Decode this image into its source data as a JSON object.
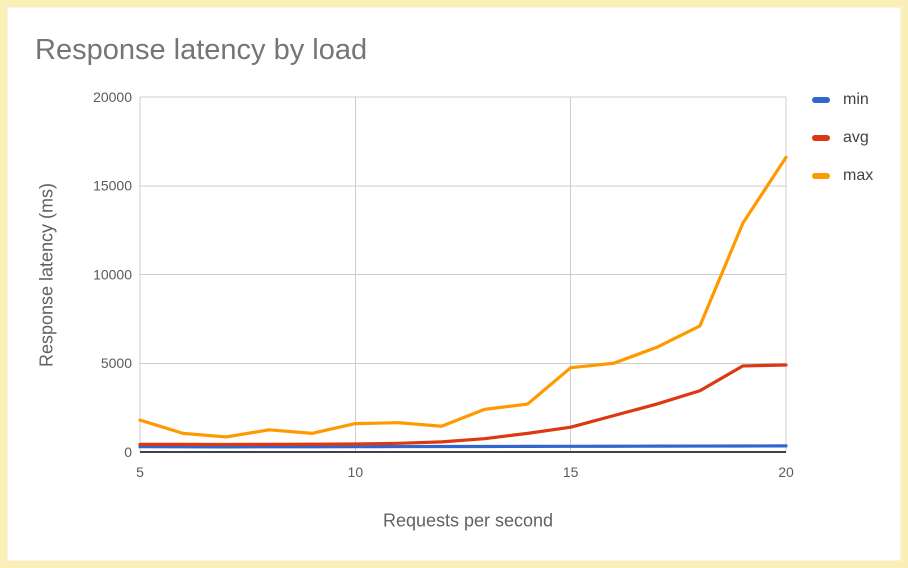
{
  "window": {
    "frame_color": "#FAEFB7",
    "background_color": "#FFFFFF"
  },
  "chart_data": {
    "type": "line",
    "title": "Response latency by load",
    "xlabel": "Requests per second",
    "ylabel": "Response latency (ms)",
    "x": [
      5,
      6,
      7,
      8,
      9,
      10,
      11,
      12,
      13,
      14,
      15,
      16,
      17,
      18,
      19,
      20
    ],
    "series": [
      {
        "name": "min",
        "color": "#3366CC",
        "values": [
          300,
          295,
          290,
          292,
          295,
          300,
          305,
          308,
          310,
          315,
          320,
          325,
          330,
          335,
          340,
          345
        ]
      },
      {
        "name": "avg",
        "color": "#DC3912",
        "values": [
          430,
          430,
          425,
          430,
          435,
          450,
          490,
          570,
          750,
          1050,
          1400,
          2050,
          2700,
          3450,
          4850,
          4900
        ]
      },
      {
        "name": "max",
        "color": "#FF9900",
        "values": [
          1800,
          1050,
          850,
          1250,
          1050,
          1600,
          1650,
          1450,
          2400,
          2700,
          4750,
          5000,
          5900,
          7100,
          12900,
          16600
        ]
      }
    ],
    "xlim": [
      5,
      20
    ],
    "ylim": [
      0,
      20000
    ],
    "x_ticks": [
      "5",
      "10",
      "15",
      "20"
    ],
    "y_ticks": [
      "0",
      "5000",
      "10000",
      "15000",
      "20000"
    ],
    "grid": true,
    "legend_position": "right",
    "colors": {
      "gridline": "#CCCCCC",
      "baseline": "#424242",
      "tick_label": "#5A5A5A",
      "axis_title": "#616161",
      "title": "#757575",
      "legend_label": "#424242"
    }
  }
}
